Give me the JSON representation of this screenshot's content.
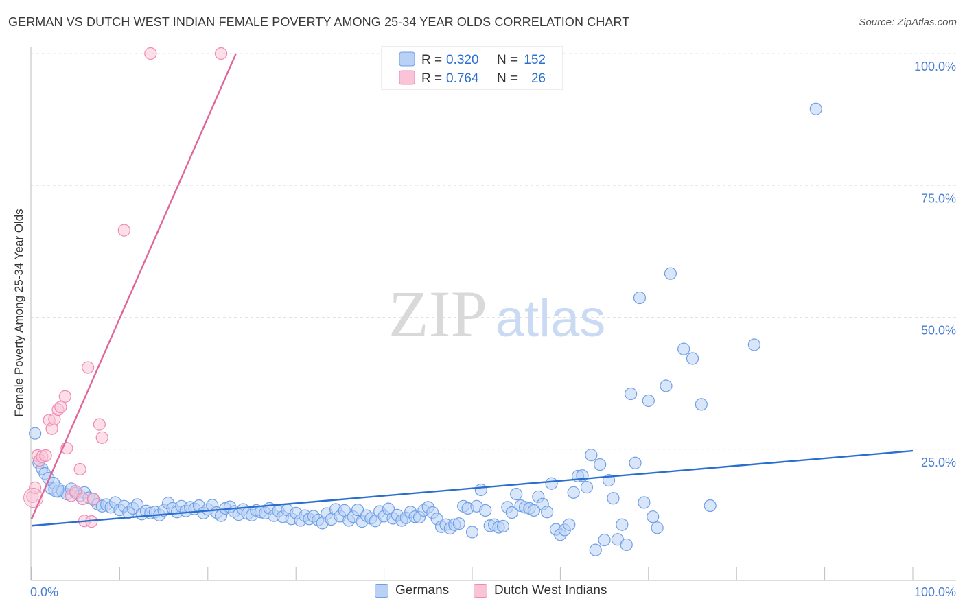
{
  "header": {
    "title": "GERMAN VS DUTCH WEST INDIAN FEMALE POVERTY AMONG 25-34 YEAR OLDS CORRELATION CHART",
    "source": "Source: ZipAtlas.com"
  },
  "watermark": {
    "zip": "ZIP",
    "atlas": "atlas"
  },
  "chart_data": {
    "type": "scatter",
    "ylabel": "Female Poverty Among 25-34 Year Olds",
    "xlim": [
      0,
      100
    ],
    "ylim": [
      0,
      100
    ],
    "x_tick_labels": {
      "left": "0.0%",
      "right": "100.0%"
    },
    "y_ticks": [
      {
        "value": 25,
        "label": "25.0%"
      },
      {
        "value": 50,
        "label": "50.0%"
      },
      {
        "value": 75,
        "label": "75.0%"
      },
      {
        "value": 100,
        "label": "100.0%"
      }
    ],
    "grid": true,
    "legend_position": "top-center",
    "series": [
      {
        "name": "Germans",
        "color": "#6fa0e6",
        "fill": "#b9d1f5",
        "line_color": "#2a6fd0",
        "r_label": "R =",
        "r": "0.320",
        "n_label": "N =",
        "n": "152",
        "trend": {
          "x0": 0,
          "y0": 10.5,
          "x1": 100,
          "y1": 24.7
        },
        "points": [
          [
            0.4,
            28.0
          ],
          [
            0.8,
            22.4
          ],
          [
            1.2,
            21.3
          ],
          [
            1.5,
            20.4
          ],
          [
            1.9,
            19.5
          ],
          [
            2.2,
            17.6
          ],
          [
            2.5,
            18.6
          ],
          [
            3.0,
            17.0
          ],
          [
            3.5,
            17.0
          ],
          [
            4.0,
            16.5
          ],
          [
            4.5,
            17.5
          ],
          [
            5.0,
            16.7
          ],
          [
            5.5,
            16.2
          ],
          [
            6.0,
            16.8
          ],
          [
            6.5,
            15.8
          ],
          [
            7.0,
            15.5
          ],
          [
            7.5,
            14.6
          ],
          [
            8.0,
            14.2
          ],
          [
            8.5,
            14.5
          ],
          [
            9.0,
            14.0
          ],
          [
            9.5,
            14.9
          ],
          [
            10.0,
            13.5
          ],
          [
            10.5,
            14.2
          ],
          [
            11.0,
            13.0
          ],
          [
            11.5,
            13.8
          ],
          [
            12.0,
            14.5
          ],
          [
            12.5,
            12.7
          ],
          [
            13.0,
            13.3
          ],
          [
            13.5,
            12.9
          ],
          [
            14.0,
            13.1
          ],
          [
            14.5,
            12.5
          ],
          [
            15.0,
            13.4
          ],
          [
            15.5,
            14.8
          ],
          [
            16.0,
            13.8
          ],
          [
            16.5,
            13.1
          ],
          [
            17.0,
            14.2
          ],
          [
            17.5,
            13.3
          ],
          [
            18.0,
            14.0
          ],
          [
            18.5,
            13.7
          ],
          [
            19.0,
            14.3
          ],
          [
            19.5,
            12.9
          ],
          [
            20.0,
            13.6
          ],
          [
            20.5,
            14.4
          ],
          [
            21.0,
            13.0
          ],
          [
            21.5,
            12.4
          ],
          [
            22.0,
            13.8
          ],
          [
            22.5,
            14.1
          ],
          [
            23.0,
            13.2
          ],
          [
            23.5,
            12.6
          ],
          [
            24.0,
            13.6
          ],
          [
            24.5,
            12.8
          ],
          [
            25.0,
            12.5
          ],
          [
            25.5,
            13.4
          ],
          [
            26.0,
            13.1
          ],
          [
            26.5,
            12.9
          ],
          [
            27.0,
            13.8
          ],
          [
            27.5,
            12.4
          ],
          [
            28.0,
            13.3
          ],
          [
            28.5,
            12.2
          ],
          [
            29.0,
            13.5
          ],
          [
            29.5,
            11.8
          ],
          [
            30.0,
            12.9
          ],
          [
            30.5,
            11.5
          ],
          [
            31.0,
            12.4
          ],
          [
            31.5,
            11.8
          ],
          [
            32.0,
            12.3
          ],
          [
            32.5,
            11.6
          ],
          [
            33.0,
            11.0
          ],
          [
            33.5,
            12.8
          ],
          [
            34.0,
            11.7
          ],
          [
            34.5,
            13.6
          ],
          [
            35.0,
            12.3
          ],
          [
            35.5,
            13.4
          ],
          [
            36.0,
            11.5
          ],
          [
            36.5,
            12.2
          ],
          [
            37.0,
            13.5
          ],
          [
            37.5,
            11.3
          ],
          [
            38.0,
            12.4
          ],
          [
            38.5,
            11.9
          ],
          [
            39.0,
            11.4
          ],
          [
            39.5,
            13.2
          ],
          [
            40.0,
            12.3
          ],
          [
            40.5,
            13.7
          ],
          [
            41.0,
            11.9
          ],
          [
            41.5,
            12.5
          ],
          [
            42.0,
            11.5
          ],
          [
            42.5,
            12.0
          ],
          [
            43.0,
            13.1
          ],
          [
            43.5,
            12.2
          ],
          [
            44.0,
            12.1
          ],
          [
            44.5,
            13.4
          ],
          [
            45.0,
            14.0
          ],
          [
            45.5,
            13.0
          ],
          [
            46.0,
            11.8
          ],
          [
            46.5,
            10.3
          ],
          [
            47.0,
            10.7
          ],
          [
            47.5,
            10.0
          ],
          [
            48.0,
            10.7
          ],
          [
            48.5,
            10.9
          ],
          [
            49.0,
            14.2
          ],
          [
            49.5,
            13.8
          ],
          [
            50.0,
            9.3
          ],
          [
            50.5,
            14.2
          ],
          [
            51.0,
            17.3
          ],
          [
            51.5,
            13.4
          ],
          [
            52.0,
            10.5
          ],
          [
            52.5,
            10.7
          ],
          [
            53.0,
            10.2
          ],
          [
            53.5,
            10.4
          ],
          [
            54.0,
            14.0
          ],
          [
            54.5,
            13.0
          ],
          [
            55.0,
            16.5
          ],
          [
            55.5,
            14.3
          ],
          [
            56.0,
            14.0
          ],
          [
            56.5,
            13.8
          ],
          [
            57.0,
            13.4
          ],
          [
            57.5,
            16.0
          ],
          [
            58.0,
            14.6
          ],
          [
            58.5,
            13.1
          ],
          [
            59.0,
            18.5
          ],
          [
            59.5,
            9.8
          ],
          [
            60.0,
            8.8
          ],
          [
            60.5,
            9.7
          ],
          [
            61.0,
            10.7
          ],
          [
            61.5,
            16.8
          ],
          [
            62.0,
            19.9
          ],
          [
            62.5,
            20.0
          ],
          [
            63.0,
            17.8
          ],
          [
            63.5,
            23.9
          ],
          [
            64.0,
            5.9
          ],
          [
            64.5,
            22.1
          ],
          [
            65.0,
            7.8
          ],
          [
            65.5,
            19.1
          ],
          [
            66.0,
            15.7
          ],
          [
            66.5,
            7.9
          ],
          [
            67.0,
            10.7
          ],
          [
            67.5,
            6.9
          ],
          [
            68.0,
            35.5
          ],
          [
            68.5,
            22.4
          ],
          [
            69.0,
            53.7
          ],
          [
            69.5,
            14.9
          ],
          [
            70.0,
            34.2
          ],
          [
            70.5,
            12.2
          ],
          [
            71.0,
            10.1
          ],
          [
            72.0,
            37.0
          ],
          [
            72.5,
            58.3
          ],
          [
            74.0,
            44.0
          ],
          [
            75.0,
            42.2
          ],
          [
            76.0,
            33.5
          ],
          [
            77.0,
            14.3
          ],
          [
            82.0,
            44.8
          ],
          [
            89.0,
            89.5
          ]
        ]
      },
      {
        "name": "Dutch West Indians",
        "color": "#f08ab0",
        "fill": "#f9c4d7",
        "line_color": "#e0669a",
        "r_label": "R =",
        "r": "0.764",
        "n_label": "N =",
        "n": "26",
        "trend": {
          "x0": 0,
          "y0": 11.8,
          "x1": 23.2,
          "y1": 100
        },
        "points": [
          [
            0.1,
            16.0
          ],
          [
            0.4,
            17.7
          ],
          [
            0.7,
            23.8
          ],
          [
            0.9,
            22.9
          ],
          [
            1.2,
            23.6
          ],
          [
            1.6,
            23.8
          ],
          [
            2.0,
            30.5
          ],
          [
            2.3,
            28.9
          ],
          [
            2.6,
            30.7
          ],
          [
            3.0,
            32.5
          ],
          [
            3.3,
            33.0
          ],
          [
            3.8,
            35.0
          ],
          [
            4.0,
            25.2
          ],
          [
            4.5,
            16.2
          ],
          [
            5.0,
            17.0
          ],
          [
            5.5,
            21.2
          ],
          [
            5.8,
            15.6
          ],
          [
            6.0,
            11.4
          ],
          [
            6.4,
            40.5
          ],
          [
            6.8,
            11.3
          ],
          [
            7.0,
            15.6
          ],
          [
            7.7,
            29.7
          ],
          [
            8.0,
            27.2
          ],
          [
            10.5,
            66.5
          ],
          [
            13.5,
            100.0
          ],
          [
            21.5,
            100.0
          ]
        ]
      }
    ]
  }
}
